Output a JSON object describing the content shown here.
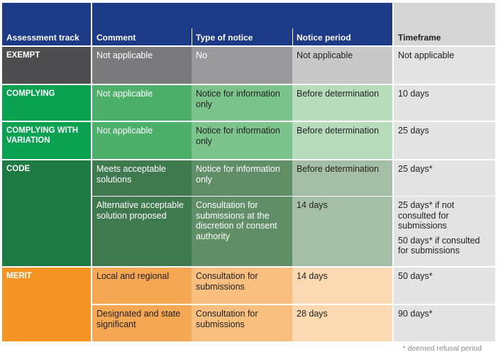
{
  "headers": {
    "track": "Assessment track",
    "comment": "Comment",
    "type": "Type of notice",
    "period": "Notice period",
    "timeframe": "Timeframe"
  },
  "rows": {
    "exempt": {
      "track": "EXEMPT",
      "comment": "Not applicable",
      "type": "No",
      "period": "Not applicable",
      "timeframe": "Not applicable"
    },
    "complying": {
      "track": "COMPLYING",
      "comment": "Not applicable",
      "type": "Notice for information only",
      "period": "Before determination",
      "timeframe": "10 days"
    },
    "complying_variation": {
      "track": "COMPLYING WITH VARIATION",
      "comment": "Not applicable",
      "type": "Notice for information only",
      "period": "Before determination",
      "timeframe": "25 days"
    },
    "code": {
      "track": "CODE",
      "sub1": {
        "comment": "Meets acceptable solutions",
        "type": "Notice for information only",
        "period": "Before determination",
        "timeframe": "25 days*"
      },
      "sub2": {
        "comment": "Alternative acceptable solution proposed",
        "type": "Consultation for submissions at the discretion of consent authority",
        "period": "14 days",
        "timeframe_a": "25 days* if not consulted for submissions",
        "timeframe_b": "50 days* if consulted for submissions"
      }
    },
    "merit": {
      "track": "MERIT",
      "sub1": {
        "comment": "Local and regional",
        "type": "Consultation for submissions",
        "period": "14 days",
        "timeframe": "50 days*"
      },
      "sub2": {
        "comment": "Designated and state significant",
        "type": "Consultation for submissions",
        "period": "28 days",
        "timeframe": "90 days*"
      }
    }
  },
  "footnote": "* deemed refusal period",
  "colors": {
    "navy": "#1d3a86",
    "header_grey": "#d6d6d6",
    "exempt_track": "#4d4d4f",
    "complying_track": "#0aa251",
    "code_track": "#1e7a43",
    "merit_track": "#f39425"
  }
}
